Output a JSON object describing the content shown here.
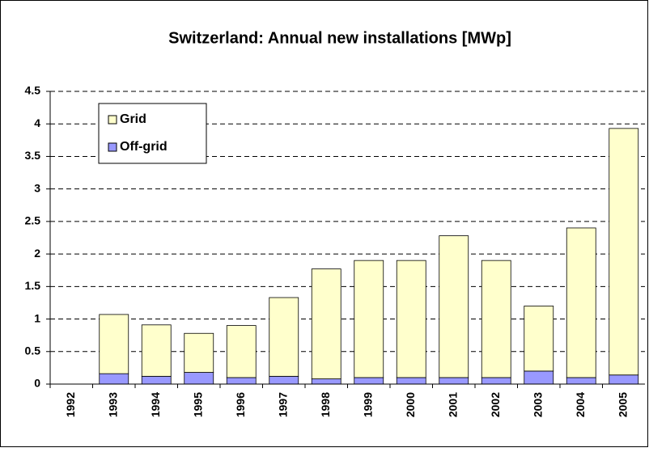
{
  "chart_data": {
    "type": "stacked_bar",
    "title": "Switzerland: Annual new installations  [MWp]",
    "categories": [
      "1992",
      "1993",
      "1994",
      "1995",
      "1996",
      "1997",
      "1998",
      "1999",
      "2000",
      "2001",
      "2002",
      "2003",
      "2004",
      "2005"
    ],
    "series": [
      {
        "name": "Off-grid",
        "color": "#9999ff",
        "values": [
          0,
          0.16,
          0.12,
          0.18,
          0.1,
          0.12,
          0.08,
          0.1,
          0.1,
          0.1,
          0.1,
          0.2,
          0.1,
          0.14
        ]
      },
      {
        "name": "Grid",
        "color": "#ffffcc",
        "values": [
          0,
          0.91,
          0.79,
          0.6,
          0.8,
          1.21,
          1.69,
          1.8,
          1.8,
          2.18,
          1.8,
          1.0,
          2.3,
          3.79
        ]
      }
    ],
    "ylim": [
      0,
      4.5
    ],
    "yticks": [
      0,
      0.5,
      1,
      1.5,
      2,
      2.5,
      3,
      3.5,
      4,
      4.5
    ],
    "grid": true,
    "legend": "top-left"
  }
}
